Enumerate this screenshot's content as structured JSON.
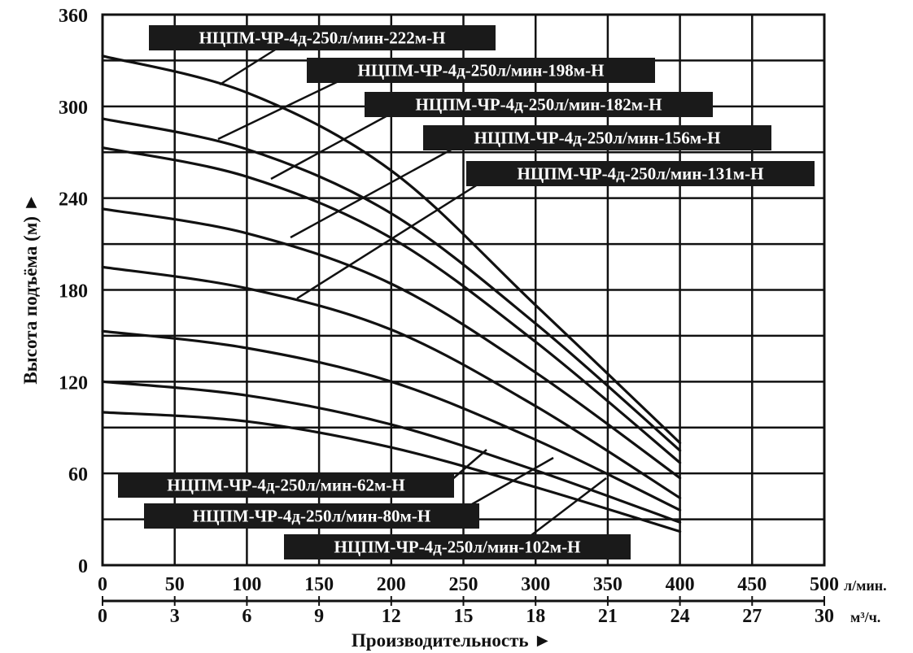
{
  "chart_data": {
    "type": "line",
    "xlabel": "Производительность ►",
    "ylabel": "Высота подъёма (м) ►",
    "x_unit": "л/мин.",
    "x2_unit": "м³/ч.",
    "xlim": [
      0,
      500
    ],
    "ylim": [
      0,
      360
    ],
    "grid": true,
    "x_ticks": [
      "0",
      "50",
      "100",
      "150",
      "200",
      "250",
      "300",
      "350",
      "400",
      "450",
      "500"
    ],
    "x2_ticks": [
      "0",
      "3",
      "6",
      "9",
      "12",
      "15",
      "18",
      "21",
      "24",
      "27",
      "30"
    ],
    "y_ticks": [
      "0",
      "60",
      "120",
      "180",
      "240",
      "300",
      "360"
    ],
    "series": [
      {
        "name": "НЦПМ-ЧР-4д-250л/мин-222м-Н",
        "x": [
          0,
          100,
          200,
          300,
          400
        ],
        "y": [
          333,
          309,
          258,
          170,
          80
        ]
      },
      {
        "name": "НЦПМ-ЧР-4д-250л/мин-198м-Н",
        "x": [
          0,
          100,
          200,
          300,
          400
        ],
        "y": [
          292,
          272,
          230,
          158,
          75
        ]
      },
      {
        "name": "НЦПМ-ЧР-4д-250л/мин-182м-Н",
        "x": [
          0,
          100,
          200,
          300,
          400
        ],
        "y": [
          273,
          254,
          214,
          146,
          67
        ]
      },
      {
        "name": "НЦПМ-ЧР-4д-250л/мин-156м-Н",
        "x": [
          0,
          100,
          200,
          300,
          400
        ],
        "y": [
          233,
          217,
          184,
          126,
          57
        ]
      },
      {
        "name": "НЦПМ-ЧР-4д-250л/мин-131м-Н",
        "x": [
          0,
          100,
          200,
          300,
          400
        ],
        "y": [
          195,
          181,
          154,
          104,
          44
        ]
      },
      {
        "name": "НЦПМ-ЧР-4д-250л/мин-102м-Н",
        "x": [
          0,
          100,
          200,
          300,
          400
        ],
        "y": [
          153,
          142,
          120,
          82,
          36
        ]
      },
      {
        "name": "НЦПМ-ЧР-4д-250л/мин-80м-Н",
        "x": [
          0,
          100,
          200,
          300,
          400
        ],
        "y": [
          120,
          111,
          92,
          62,
          28
        ]
      },
      {
        "name": "НЦПМ-ЧР-4д-250л/мин-62м-Н",
        "x": [
          0,
          100,
          200,
          300,
          400
        ],
        "y": [
          100,
          94,
          77,
          51,
          22
        ]
      }
    ]
  }
}
